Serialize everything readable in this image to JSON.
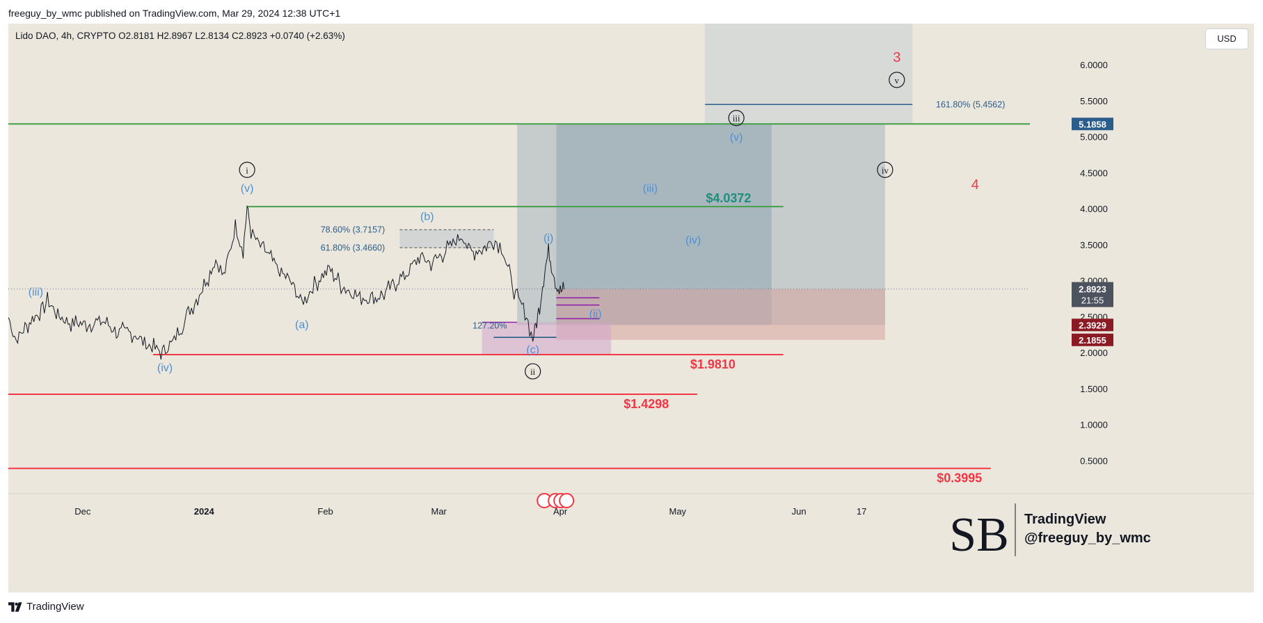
{
  "header": {
    "published": "freeguy_by_wmc published on TradingView.com, Mar 29, 2024 12:38 UTC+1"
  },
  "symbol_line": "Lido DAO, 4h, CRYPTO  O2.8181  H2.8967  L2.8134  C2.8923  +0.0740 (+2.63%)",
  "currency": "USD",
  "footer": {
    "brand": "TradingView"
  },
  "colors": {
    "background": "#ebe7dc",
    "green": "#43a047",
    "red": "#f23645",
    "blue": "#4a90d9",
    "teal": "#1e8f7e",
    "price_line": "#787b86"
  },
  "chart_data": {
    "type": "line",
    "series": [],
    "x_range": [
      "2023-11-12",
      "2024-07-30"
    ],
    "ylim": [
      0.1,
      6.5
    ],
    "y_ticks": [
      "6.0000",
      "5.5000",
      "5.0000",
      "4.5000",
      "4.0000",
      "3.5000",
      "3.0000",
      "2.5000",
      "2.0000",
      "1.5000",
      "1.0000",
      "0.5000"
    ],
    "x_ticks": [
      {
        "date": "2023-12-01",
        "label": "Dec",
        "bold": false
      },
      {
        "date": "2024-01-01",
        "label": "2024",
        "bold": true
      },
      {
        "date": "2024-02-01",
        "label": "Feb",
        "bold": false
      },
      {
        "date": "2024-03-01",
        "label": "Mar",
        "bold": false
      },
      {
        "date": "2024-04-01",
        "label": "Apr",
        "bold": false
      },
      {
        "date": "2024-05-01",
        "label": "May",
        "bold": false
      },
      {
        "date": "2024-06-01",
        "label": "Jun",
        "bold": false
      },
      {
        "date": "2024-06-17",
        "label": "17",
        "bold": false
      }
    ],
    "price_path": [
      [
        "2023-11-12",
        2.5
      ],
      [
        "2023-11-14",
        2.18
      ],
      [
        "2023-11-17",
        2.4
      ],
      [
        "2023-11-20",
        2.58
      ],
      [
        "2023-11-22",
        2.72
      ],
      [
        "2023-11-25",
        2.52
      ],
      [
        "2023-11-28",
        2.42
      ],
      [
        "2023-12-02",
        2.4
      ],
      [
        "2023-12-06",
        2.45
      ],
      [
        "2023-12-10",
        2.3
      ],
      [
        "2023-12-14",
        2.28
      ],
      [
        "2023-12-18",
        2.1
      ],
      [
        "2023-12-21",
        2.02
      ],
      [
        "2023-12-24",
        2.14
      ],
      [
        "2023-12-28",
        2.55
      ],
      [
        "2024-01-01",
        2.95
      ],
      [
        "2024-01-04",
        3.3
      ],
      [
        "2024-01-06",
        3.05
      ],
      [
        "2024-01-09",
        3.75
      ],
      [
        "2024-01-11",
        3.45
      ],
      [
        "2024-01-12",
        4.03
      ],
      [
        "2024-01-13",
        3.7
      ],
      [
        "2024-01-15",
        3.5
      ],
      [
        "2024-01-17",
        3.4
      ],
      [
        "2024-01-20",
        3.15
      ],
      [
        "2024-01-23",
        3.0
      ],
      [
        "2024-01-26",
        2.7
      ],
      [
        "2024-01-28",
        2.85
      ],
      [
        "2024-01-30",
        3.0
      ],
      [
        "2024-02-02",
        3.18
      ],
      [
        "2024-02-05",
        2.95
      ],
      [
        "2024-02-09",
        2.8
      ],
      [
        "2024-02-13",
        2.75
      ],
      [
        "2024-02-16",
        2.82
      ],
      [
        "2024-02-19",
        2.98
      ],
      [
        "2024-02-22",
        3.12
      ],
      [
        "2024-02-25",
        3.35
      ],
      [
        "2024-02-28",
        3.25
      ],
      [
        "2024-03-02",
        3.38
      ],
      [
        "2024-03-05",
        3.55
      ],
      [
        "2024-03-07",
        3.65
      ],
      [
        "2024-03-09",
        3.4
      ],
      [
        "2024-03-12",
        3.45
      ],
      [
        "2024-03-15",
        3.58
      ],
      [
        "2024-03-17",
        3.5
      ],
      [
        "2024-03-19",
        3.1
      ],
      [
        "2024-03-21",
        2.75
      ],
      [
        "2024-03-23",
        2.6
      ],
      [
        "2024-03-25",
        2.2
      ],
      [
        "2024-03-26",
        2.45
      ],
      [
        "2024-03-27",
        2.75
      ],
      [
        "2024-03-28",
        3.15
      ],
      [
        "2024-03-29",
        3.4
      ],
      [
        "2024-03-30",
        3.2
      ],
      [
        "2024-03-31",
        2.95
      ],
      [
        "2024-04-01",
        2.85
      ],
      [
        "2024-04-02",
        2.89
      ]
    ],
    "horizontal_lines": [
      {
        "price": 5.1858,
        "from": "2023-11-12",
        "to": "2024-07-30",
        "color": "#43a047",
        "label": "",
        "scale_label": "5.1858",
        "scale_bg": "#2a5d8c"
      },
      {
        "price": 4.0372,
        "from": "2024-01-12",
        "to": "2024-05-28",
        "color": "#43a047",
        "label": "$4.0372",
        "label_date": "2024-05-14",
        "label_color": "#1e8f7e"
      },
      {
        "price": 1.981,
        "from": "2023-12-19",
        "to": "2024-05-28",
        "color": "#f23645",
        "label": "$1.9810",
        "label_date": "2024-05-10",
        "label_color": "#f23645"
      },
      {
        "price": 1.4298,
        "from": "2023-11-12",
        "to": "2024-05-06",
        "color": "#f23645",
        "label": "$1.4298",
        "label_date": "2024-04-23",
        "label_color": "#f23645"
      },
      {
        "price": 0.3995,
        "from": "2023-11-12",
        "to": "2024-07-20",
        "color": "#f23645",
        "label": "$0.3995",
        "label_date": "2024-07-12",
        "label_color": "#f23645"
      }
    ],
    "current_price": {
      "price": 2.8923,
      "label": "2.8923",
      "countdown": "21:55"
    },
    "scale_badges": [
      {
        "price": 2.3929,
        "label": "2.3929",
        "bg": "#8b1a24"
      },
      {
        "price": 2.1855,
        "label": "2.1855",
        "bg": "#8b1a24"
      }
    ],
    "fib_levels": [
      {
        "label": "161.80% (5.4562)",
        "price": 5.4562,
        "from": "2024-05-08",
        "to": "2024-06-30",
        "label_date": "2024-07-06"
      },
      {
        "label": "78.60% (3.7157)",
        "price": 3.7157,
        "label_date": "2024-02-08"
      },
      {
        "label": "61.80% (3.4660)",
        "price": 3.466,
        "label_date": "2024-02-08"
      },
      {
        "label": "127.20%",
        "price": 2.38,
        "label_date": "2024-03-14"
      }
    ],
    "wave_labels": [
      {
        "text": "(iii)",
        "date": "2023-11-19",
        "price": 2.8,
        "color": "#4a90d9"
      },
      {
        "text": "(iv)",
        "date": "2023-12-22",
        "price": 1.75,
        "color": "#4a90d9"
      },
      {
        "text": "(v)",
        "date": "2024-01-12",
        "price": 4.24,
        "color": "#4a90d9"
      },
      {
        "text": "i",
        "date": "2024-01-12",
        "price": 4.5,
        "color": "#131722",
        "circled": true
      },
      {
        "text": "(a)",
        "date": "2024-01-26",
        "price": 2.35,
        "color": "#4a90d9"
      },
      {
        "text": "(b)",
        "date": "2024-02-27",
        "price": 3.85,
        "color": "#4a90d9"
      },
      {
        "text": "(c)",
        "date": "2024-03-25",
        "price": 2.0,
        "color": "#4a90d9"
      },
      {
        "text": "ii",
        "date": "2024-03-25",
        "price": 1.7,
        "color": "#131722",
        "circled": true
      },
      {
        "text": "(i)",
        "date": "2024-03-29",
        "price": 3.55,
        "color": "#4a90d9"
      },
      {
        "text": "(ii)",
        "date": "2024-04-10",
        "price": 2.5,
        "color": "#4a90d9"
      },
      {
        "text": "(iii)",
        "date": "2024-04-24",
        "price": 4.24,
        "color": "#4a90d9"
      },
      {
        "text": "(iv)",
        "date": "2024-05-05",
        "price": 3.52,
        "color": "#4a90d9"
      },
      {
        "text": "(v)",
        "date": "2024-05-16",
        "price": 4.95,
        "color": "#4a90d9"
      },
      {
        "text": "iii",
        "date": "2024-05-16",
        "price": 5.22,
        "color": "#131722",
        "circled": true
      },
      {
        "text": "iv",
        "date": "2024-06-23",
        "price": 4.5,
        "color": "#131722",
        "circled": true
      },
      {
        "text": "v",
        "date": "2024-06-26",
        "price": 5.75,
        "color": "#131722",
        "circled": true
      },
      {
        "text": "3",
        "date": "2024-06-26",
        "price": 6.05,
        "color": "#f23645"
      },
      {
        "text": "4",
        "date": "2024-07-16",
        "price": 4.28,
        "color": "#f23645"
      }
    ],
    "watermark": {
      "title": "TradingView",
      "handle": "@freeguy_by_wmc",
      "logo_text": "SB"
    }
  }
}
